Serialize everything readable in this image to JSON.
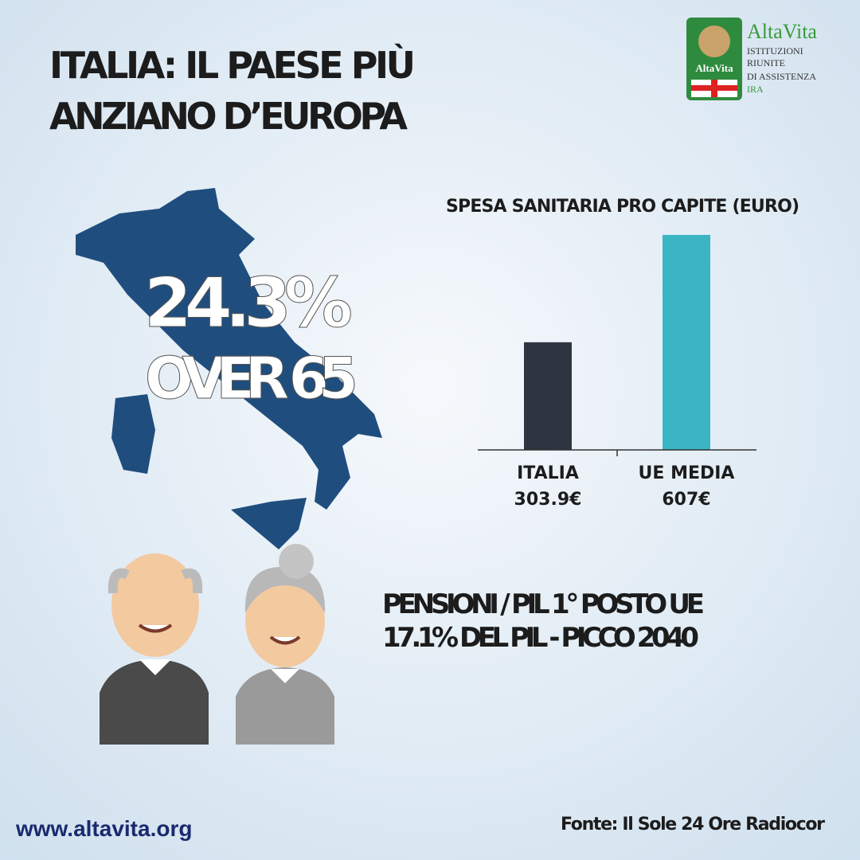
{
  "header": {
    "title_lines": [
      "ITALIA: IL PAESE PIÙ",
      "ANZIANO D’EUROPA"
    ]
  },
  "logo": {
    "badge": "AltaVita",
    "name": "AltaVita",
    "lines": [
      "ISTITUZIONI",
      "RIUNITE",
      "DI ASSISTENZA",
      "IRA"
    ]
  },
  "stat": {
    "value": "24.3%",
    "label": "OVER 65"
  },
  "chart_data": {
    "type": "bar",
    "title": "SPESA SANITARIA PRO CAPITE (EURO)",
    "categories": [
      "ITALIA",
      "UE MEDIA"
    ],
    "values": [
      303.9,
      607
    ],
    "value_labels": [
      "303.9€",
      "607€"
    ],
    "colors": [
      "#2e3440",
      "#3bb5c3"
    ]
  },
  "pensions": {
    "lines": [
      "PENSIONI / PIL 1° POSTO UE",
      "17.1% DEL PIL - PICCO 2040"
    ]
  },
  "footer": {
    "website": "www.altavita.org",
    "source": "Fonte: Il Sole 24 Ore Radiocor"
  }
}
